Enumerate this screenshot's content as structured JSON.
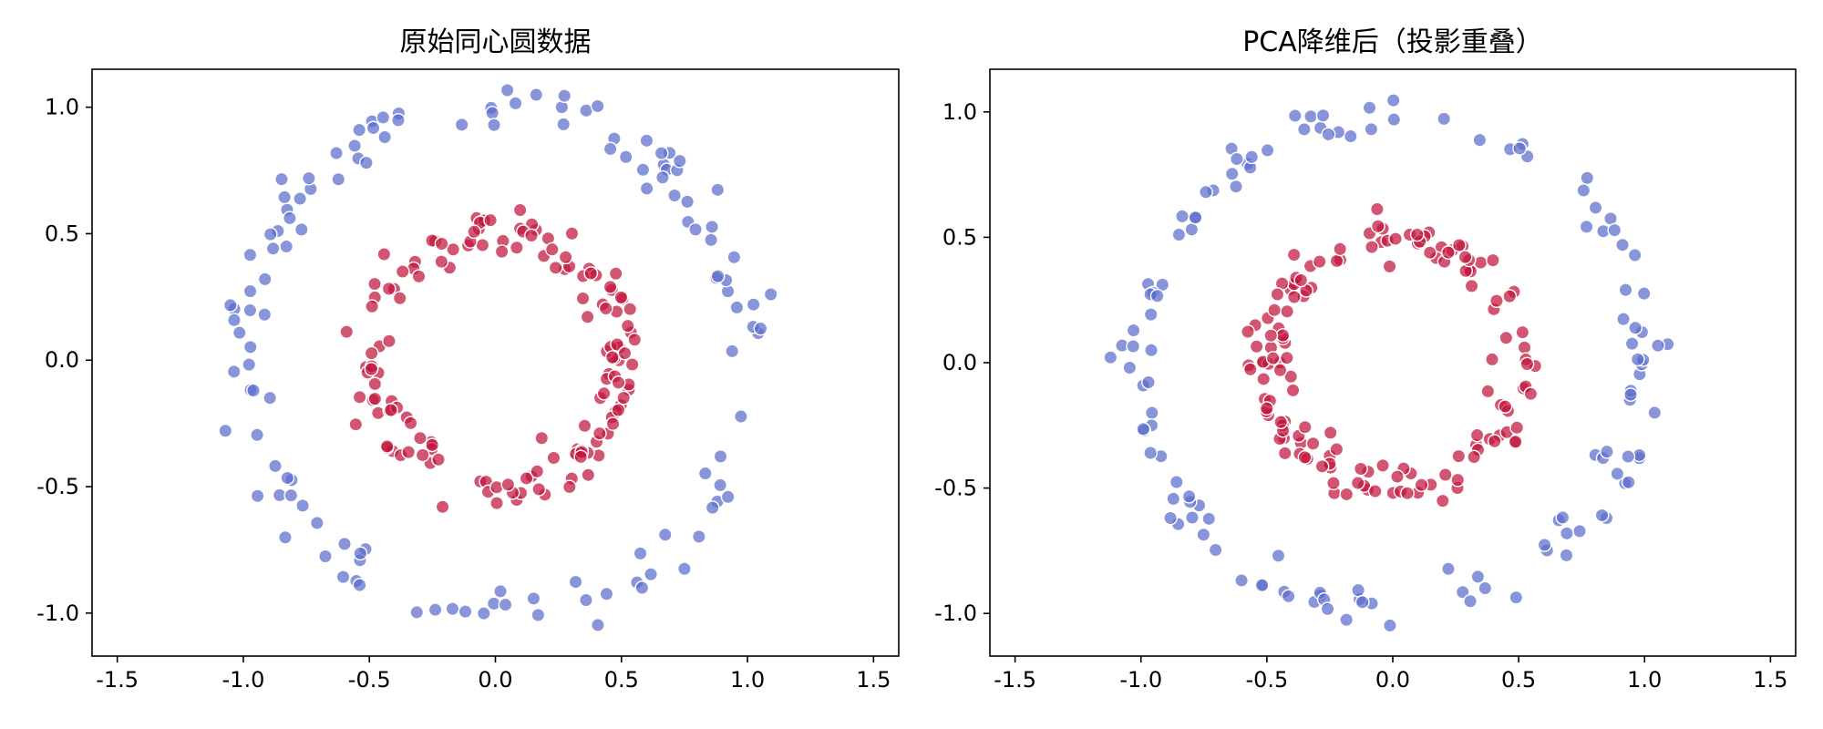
{
  "colors": {
    "outer": "#5b6ccc",
    "inner": "#c0153b"
  },
  "chart_data": [
    {
      "type": "scatter",
      "title": "原始同心圆数据",
      "xlim": [
        -1.6,
        1.6
      ],
      "ylim": [
        -1.17,
        1.15
      ],
      "xticks": [
        -1.5,
        -1.0,
        -0.5,
        0.0,
        0.5,
        1.0,
        1.5
      ],
      "xtick_labels": [
        "-1.5",
        "-1.0",
        "-0.5",
        "0.0",
        "0.5",
        "1.0",
        "1.5"
      ],
      "yticks": [
        -1.0,
        -0.5,
        0.0,
        0.5,
        1.0
      ],
      "ytick_labels": [
        "-1.0",
        "-0.5",
        "0.0",
        "0.5",
        "1.0"
      ],
      "grid": false,
      "series": [
        {
          "key": "outer",
          "radius": 1.0,
          "count": 130,
          "noise": 0.045,
          "seed": 11
        },
        {
          "key": "inner",
          "radius": 0.5,
          "count": 150,
          "noise": 0.045,
          "seed": 23
        }
      ]
    },
    {
      "type": "scatter",
      "title": "PCA降维后（投影重叠）",
      "xlim": [
        -1.6,
        1.6
      ],
      "ylim": [
        -1.17,
        1.17
      ],
      "xticks": [
        -1.5,
        -1.0,
        -0.5,
        0.0,
        0.5,
        1.0,
        1.5
      ],
      "xtick_labels": [
        "-1.5",
        "-1.0",
        "-0.5",
        "0.0",
        "0.5",
        "1.0",
        "1.5"
      ],
      "yticks": [
        -1.0,
        -0.5,
        0.0,
        0.5,
        1.0
      ],
      "ytick_labels": [
        "-1.0",
        "-0.5",
        "0.0",
        "0.5",
        "1.0"
      ],
      "grid": false,
      "series": [
        {
          "key": "outer",
          "radius": 1.0,
          "count": 130,
          "noise": 0.045,
          "seed": 37
        },
        {
          "key": "inner",
          "radius": 0.5,
          "count": 150,
          "noise": 0.045,
          "seed": 41
        }
      ]
    }
  ]
}
